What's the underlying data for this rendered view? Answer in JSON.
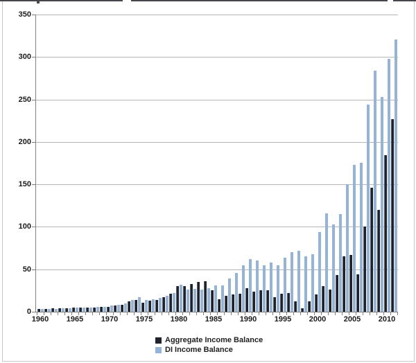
{
  "figure": {
    "frame_border_color": "#c9c9c9",
    "cropped_title_edge_color": "#46464d"
  },
  "chart_data": {
    "type": "bar",
    "title": "",
    "xlabel": "",
    "ylabel": "",
    "ylim": [
      0,
      350
    ],
    "ytick_step": 50,
    "yticks": [
      0,
      50,
      100,
      150,
      200,
      250,
      300,
      350
    ],
    "xticks": [
      1960,
      1965,
      1970,
      1975,
      1980,
      1985,
      1990,
      1995,
      2000,
      2005,
      2010
    ],
    "grid": true,
    "legend_position": "bottom-center",
    "colors": {
      "gridline": "#b5b5b5",
      "axis": "#7f7f7f",
      "tick_text": "#1a1a1a"
    },
    "categories": [
      1960,
      1961,
      1962,
      1963,
      1964,
      1965,
      1966,
      1967,
      1968,
      1969,
      1970,
      1971,
      1972,
      1973,
      1974,
      1975,
      1976,
      1977,
      1978,
      1979,
      1980,
      1981,
      1982,
      1983,
      1984,
      1985,
      1986,
      1987,
      1988,
      1989,
      1990,
      1991,
      1992,
      1993,
      1994,
      1995,
      1996,
      1997,
      1998,
      1999,
      2000,
      2001,
      2002,
      2003,
      2004,
      2005,
      2006,
      2007,
      2008,
      2009,
      2010,
      2011
    ],
    "series": [
      {
        "name": "Aggregate Income Balance",
        "color": "#20222c",
        "edge_color": "#595f73",
        "values": [
          3,
          3,
          4,
          4,
          4,
          5,
          5,
          5,
          5,
          6,
          6,
          7,
          8,
          12,
          14,
          11,
          13,
          14,
          17,
          21,
          30,
          30,
          33,
          35,
          36,
          25,
          15,
          19,
          20,
          21,
          28,
          24,
          25,
          25,
          17,
          21,
          22,
          12,
          4,
          12,
          20,
          30,
          26,
          43,
          65,
          67,
          44,
          100,
          146,
          120,
          184,
          227
        ]
      },
      {
        "name": "DI Income Balance",
        "color": "#95b3d7",
        "edge_color": "#7d9cc4",
        "values": [
          3,
          3,
          3,
          4,
          4,
          5,
          5,
          5,
          6,
          6,
          7,
          8,
          10,
          14,
          17,
          14,
          15,
          16,
          19,
          22,
          32,
          26,
          27,
          26,
          28,
          31,
          31,
          39,
          46,
          55,
          62,
          60,
          55,
          58,
          55,
          64,
          70,
          72,
          65,
          68,
          94,
          116,
          103,
          115,
          150,
          173,
          175,
          244,
          284,
          253,
          298,
          321
        ]
      }
    ]
  }
}
